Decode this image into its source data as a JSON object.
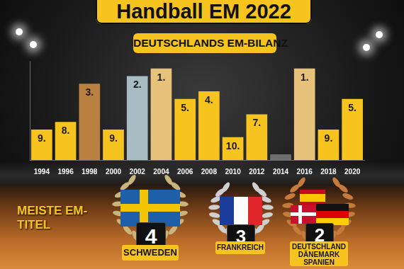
{
  "header": {
    "title": "Handball EM 2022"
  },
  "chart_data": {
    "type": "bar",
    "title": "DEUTSCHLANDS EM-BILANZ",
    "categories": [
      "1994",
      "1996",
      "1998",
      "2000",
      "2002",
      "2004",
      "2006",
      "2008",
      "2010",
      "2012",
      "2014",
      "2016",
      "2018",
      "2020"
    ],
    "values": [
      9,
      8,
      3,
      9,
      2,
      1,
      5,
      4,
      10,
      7,
      null,
      1,
      9,
      5
    ],
    "value_labels": [
      "9.",
      "8.",
      "3.",
      "9.",
      "2.",
      "1.",
      "5.",
      "4.",
      "10.",
      "7.",
      null,
      "1.",
      "9.",
      "5."
    ],
    "colors": [
      "#f7c41f",
      "#f7c41f",
      "#b9803f",
      "#f7c41f",
      "#a8bcc4",
      "#e7c27b",
      "#f7c41f",
      "#f7c41f",
      "#f7c41f",
      "#f7c41f",
      "#6e6e6e",
      "#e7c27b",
      "#f7c41f",
      "#f7c41f"
    ],
    "ylim": [
      13,
      0
    ],
    "data_labels": true,
    "tick_labels": "x",
    "grid": false
  },
  "most_titles": {
    "heading": "MEISTE EM-TITEL",
    "entries": [
      {
        "countries": [
          "SCHWEDEN"
        ],
        "titles": 4
      },
      {
        "countries": [
          "FRANKREICH"
        ],
        "titles": 3
      },
      {
        "countries": [
          "DEUTSCHLAND",
          "DÄNEMARK",
          "SPANIEN"
        ],
        "titles": 2
      }
    ]
  }
}
